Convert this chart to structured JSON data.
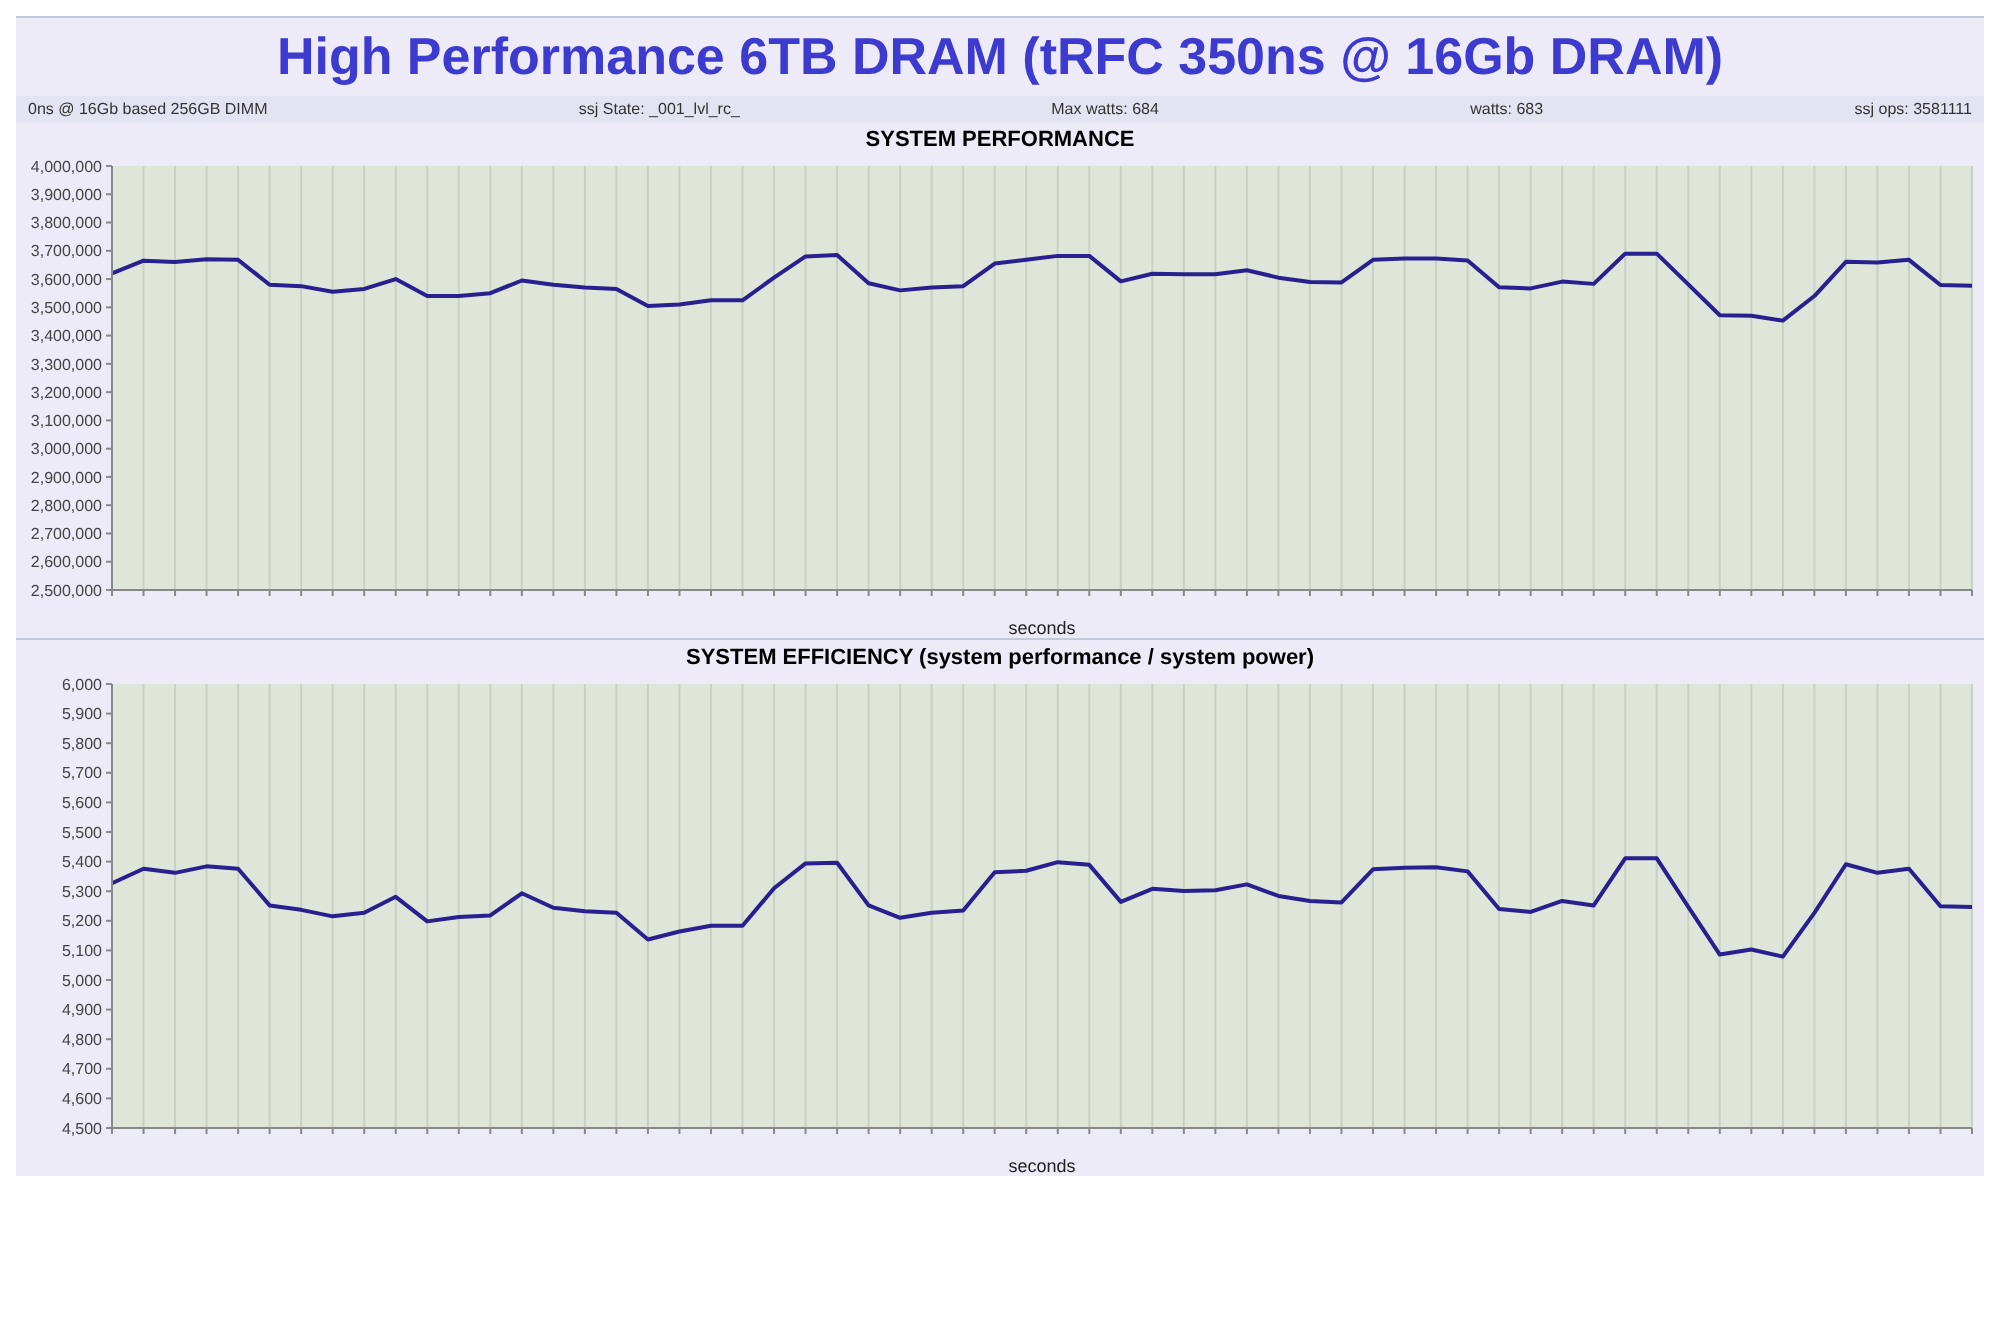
{
  "chart_data": [
    {
      "type": "line",
      "title": "High Performance 6TB DRAM (tRFC 350ns @ 16Gb DRAM)",
      "subtitle": "SYSTEM PERFORMANCE",
      "xlabel": "seconds",
      "annotations": [
        "0ns @ 16Gb based 256GB DIMM",
        "ssj State: _001_lvl_rc_",
        "Max watts: 684",
        "watts: 683",
        "ssj ops: 3581111"
      ],
      "categories": [
        null,
        null,
        null,
        null,
        null,
        null,
        null,
        null,
        null,
        null,
        null,
        null,
        null,
        null,
        null,
        null,
        null,
        null,
        null,
        null,
        null,
        null,
        null,
        null,
        null,
        null,
        null,
        null,
        null,
        null,
        null,
        null,
        null,
        null,
        null,
        null,
        null,
        null,
        null,
        null,
        null,
        null,
        null,
        null,
        null,
        null,
        null,
        null,
        null,
        null,
        null,
        null,
        null,
        null,
        null,
        null,
        null,
        null,
        null,
        null
      ],
      "series": [
        {
          "color": "#2a1f8f",
          "values": [
            3620000,
            3665000,
            3660000,
            3670000,
            3668000,
            3580000,
            3575000,
            3555000,
            3565000,
            3600000,
            3540000,
            3540000,
            3550000,
            3595000,
            3580000,
            3570000,
            3565000,
            3505000,
            3510000,
            3525000,
            3525000,
            3605000,
            3680000,
            3685000,
            3585000,
            3560000,
            3570000,
            3575000,
            3655000,
            3668000,
            3682000,
            3682000,
            3592000,
            3619000,
            3617000,
            3617000,
            3631000,
            3605000,
            3590000,
            3588000,
            3668000,
            3673000,
            3673000,
            3666000,
            3571000,
            3567000,
            3591000,
            3583000,
            3690000,
            3690000,
            3581000,
            3472000,
            3470000,
            3453000,
            3540000,
            3661000,
            3659000,
            3668000,
            3579000,
            3576000
          ]
        }
      ],
      "ylim": [
        2500000,
        4000000
      ],
      "yticks": [
        {
          "value": 2500000,
          "label": "2,500,000"
        },
        {
          "value": 2600000,
          "label": "2,600,000"
        },
        {
          "value": 2700000,
          "label": "2,700,000"
        },
        {
          "value": 2800000,
          "label": "2,800,000"
        },
        {
          "value": 2900000,
          "label": "2,900,000"
        },
        {
          "value": 3000000,
          "label": "3,000,000"
        },
        {
          "value": 3100000,
          "label": "3,100,000"
        },
        {
          "value": 3200000,
          "label": "3,200,000"
        },
        {
          "value": 3300000,
          "label": "3,300,000"
        },
        {
          "value": 3400000,
          "label": "3,400,000"
        },
        {
          "value": 3500000,
          "label": "3,500,000"
        },
        {
          "value": 3600000,
          "label": "3,600,000"
        },
        {
          "value": 3700000,
          "label": "3,700,000"
        },
        {
          "value": 3800000,
          "label": "3,800,000"
        },
        {
          "value": 3900000,
          "label": "3,900,000"
        },
        {
          "value": 4000000,
          "label": "4,000,000"
        }
      ],
      "grid": "x",
      "legend": false,
      "marker": "none",
      "line_style": "solid"
    },
    {
      "type": "line",
      "title": "SYSTEM EFFICIENCY (system performance / system power)",
      "xlabel": "seconds",
      "categories": [
        null,
        null,
        null,
        null,
        null,
        null,
        null,
        null,
        null,
        null,
        null,
        null,
        null,
        null,
        null,
        null,
        null,
        null,
        null,
        null,
        null,
        null,
        null,
        null,
        null,
        null,
        null,
        null,
        null,
        null,
        null,
        null,
        null,
        null,
        null,
        null,
        null,
        null,
        null,
        null,
        null,
        null,
        null,
        null,
        null,
        null,
        null,
        null,
        null,
        null,
        null,
        null,
        null,
        null,
        null,
        null,
        null,
        null,
        null,
        null
      ],
      "series": [
        {
          "color": "#2a1f8f",
          "values": [
            5327,
            5376,
            5362,
            5384,
            5376,
            5252,
            5237,
            5215,
            5227,
            5281,
            5198,
            5213,
            5218,
            5293,
            5244,
            5232,
            5227,
            5137,
            5164,
            5183,
            5183,
            5310,
            5394,
            5396,
            5252,
            5210,
            5227,
            5235,
            5364,
            5369,
            5398,
            5389,
            5264,
            5308,
            5301,
            5303,
            5323,
            5284,
            5267,
            5262,
            5374,
            5379,
            5381,
            5367,
            5240,
            5230,
            5267,
            5252,
            5411,
            5411,
            5247,
            5086,
            5103,
            5079,
            5227,
            5391,
            5362,
            5376,
            5249,
            5247
          ]
        }
      ],
      "ylim": [
        4500,
        6000
      ],
      "yticks": [
        {
          "value": 4500,
          "label": "4,500"
        },
        {
          "value": 4600,
          "label": "4,600"
        },
        {
          "value": 4700,
          "label": "4,700"
        },
        {
          "value": 4800,
          "label": "4,800"
        },
        {
          "value": 4900,
          "label": "4,900"
        },
        {
          "value": 5000,
          "label": "5,000"
        },
        {
          "value": 5100,
          "label": "5,100"
        },
        {
          "value": 5200,
          "label": "5,200"
        },
        {
          "value": 5300,
          "label": "5,300"
        },
        {
          "value": 5400,
          "label": "5,400"
        },
        {
          "value": 5500,
          "label": "5,500"
        },
        {
          "value": 5600,
          "label": "5,600"
        },
        {
          "value": 5700,
          "label": "5,700"
        },
        {
          "value": 5800,
          "label": "5,800"
        },
        {
          "value": 5900,
          "label": "5,900"
        },
        {
          "value": 6000,
          "label": "6,000"
        }
      ],
      "grid": "x",
      "legend": false,
      "marker": "none",
      "line_style": "solid"
    }
  ]
}
